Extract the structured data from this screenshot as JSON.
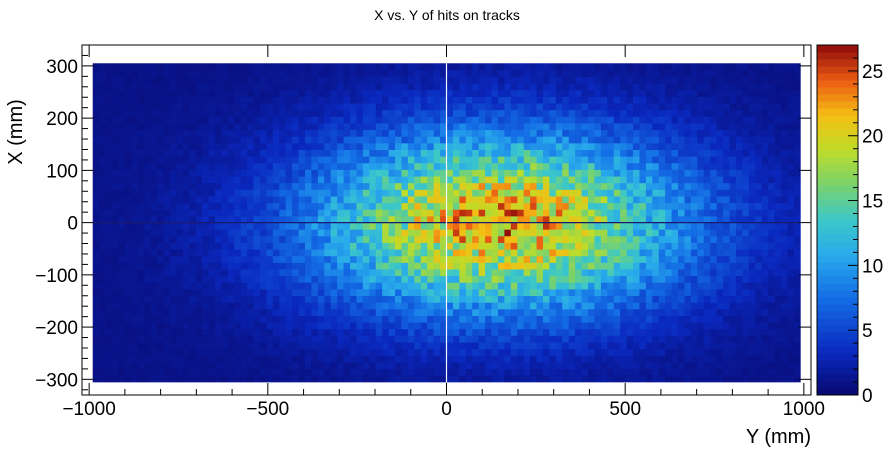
{
  "chart_data": {
    "type": "heatmap",
    "title": "X vs. Y of hits on tracks",
    "xlabel": "Y (mm)",
    "ylabel": "X (mm)",
    "xlim": [
      -1020,
      1020
    ],
    "ylim": [
      -330,
      340
    ],
    "x_ticks": [
      -1000,
      -500,
      0,
      500,
      1000
    ],
    "y_ticks": [
      -300,
      -200,
      -100,
      0,
      100,
      200,
      300
    ],
    "x_tick_labels": [
      "−1000",
      "−500",
      "0",
      "500",
      "1000"
    ],
    "y_tick_labels": [
      "−300",
      "−200",
      "−100",
      "0",
      "100",
      "200",
      "300"
    ],
    "colorbar": {
      "range": [
        0,
        27
      ],
      "ticks": [
        0,
        5,
        10,
        15,
        20,
        25
      ],
      "tick_labels": [
        "0",
        "5",
        "10",
        "15",
        "20",
        "25"
      ]
    },
    "distribution": {
      "x_extent": [
        -990,
        990
      ],
      "y_extent": [
        -305,
        305
      ],
      "peak_x": 150,
      "peak_y": 0,
      "peak_value": 22,
      "edge_value": 1
    },
    "dead_lines_y_mm": [
      0
    ],
    "dead_lines_x_mm": [
      0
    ]
  }
}
